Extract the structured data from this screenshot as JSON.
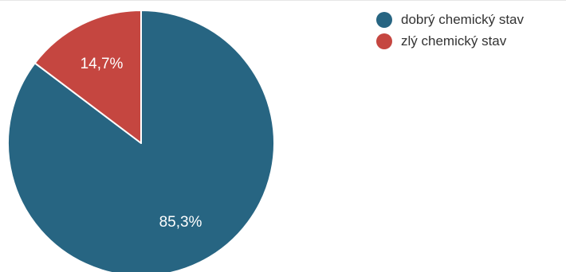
{
  "chart_data": {
    "type": "pie",
    "title": "",
    "start_angle_deg": 0,
    "direction": "clockwise",
    "legend_position": "top-right",
    "slices": [
      {
        "name": "dobrý chemický stav",
        "value": 85.3,
        "label": "85,3%",
        "color": "#276582"
      },
      {
        "name": "zlý chemický stav",
        "value": 14.7,
        "label": "14,7%",
        "color": "#c54640"
      }
    ]
  }
}
